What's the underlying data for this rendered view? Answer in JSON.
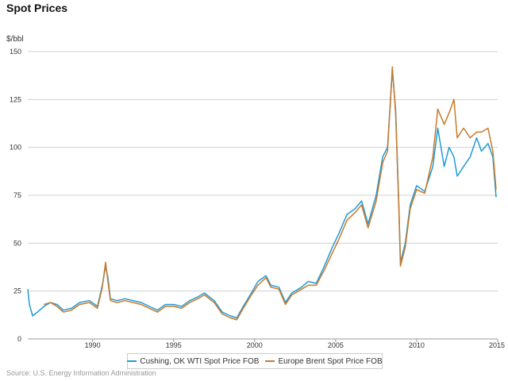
{
  "chart_data": {
    "type": "line",
    "title": "Spot Prices",
    "ylabel": "$/bbl",
    "source": "Source: U.S. Energy Information Administration",
    "ylim": [
      0,
      150
    ],
    "yticks": [
      0,
      25,
      50,
      75,
      100,
      125,
      150
    ],
    "xlim": [
      1986,
      2015
    ],
    "xticks": [
      1990,
      1995,
      2000,
      2005,
      2010,
      2015
    ],
    "grid": true,
    "legend_position": "bottom",
    "series": [
      {
        "name": "Cushing, OK WTI Spot Price FOB",
        "color": "#1f9bd7",
        "x": [
          1986.0,
          1986.1,
          1986.3,
          1986.6,
          1987.0,
          1987.4,
          1987.8,
          1988.2,
          1988.7,
          1989.2,
          1989.8,
          1990.3,
          1990.6,
          1990.8,
          1990.95,
          1991.1,
          1991.5,
          1992.0,
          1992.5,
          1993.0,
          1993.5,
          1994.0,
          1994.5,
          1995.0,
          1995.5,
          1996.0,
          1996.5,
          1996.9,
          1997.5,
          1998.0,
          1998.5,
          1998.9,
          1999.3,
          1999.8,
          2000.2,
          2000.7,
          2001.0,
          2001.5,
          2001.9,
          2002.3,
          2002.9,
          2003.3,
          2003.8,
          2004.3,
          2004.8,
          2005.2,
          2005.7,
          2006.2,
          2006.6,
          2007.0,
          2007.5,
          2007.9,
          2008.2,
          2008.5,
          2008.7,
          2008.9,
          2009.0,
          2009.3,
          2009.6,
          2010.0,
          2010.5,
          2011.0,
          2011.3,
          2011.7,
          2012.0,
          2012.3,
          2012.5,
          2012.9,
          2013.3,
          2013.7,
          2014.0,
          2014.4,
          2014.7,
          2014.9
        ],
        "values": [
          26,
          18,
          12,
          14,
          17,
          19,
          18,
          15,
          16,
          19,
          20,
          17,
          28,
          38,
          32,
          21,
          20,
          21,
          20,
          19,
          17,
          15,
          18,
          18,
          17,
          20,
          22,
          24,
          20,
          14,
          12,
          11,
          17,
          24,
          30,
          33,
          28,
          27,
          19,
          24,
          27,
          30,
          29,
          38,
          48,
          55,
          65,
          68,
          72,
          60,
          75,
          95,
          100,
          140,
          120,
          70,
          40,
          50,
          70,
          80,
          77,
          90,
          110,
          90,
          100,
          95,
          85,
          90,
          95,
          105,
          98,
          102,
          95,
          74
        ]
      },
      {
        "name": "Europe Brent Spot Price FOB",
        "color": "#c87a2c",
        "x": [
          1987.0,
          1987.4,
          1987.8,
          1988.2,
          1988.7,
          1989.2,
          1989.8,
          1990.3,
          1990.6,
          1990.8,
          1990.95,
          1991.1,
          1991.5,
          1992.0,
          1992.5,
          1993.0,
          1993.5,
          1994.0,
          1994.5,
          1995.0,
          1995.5,
          1996.0,
          1996.5,
          1996.9,
          1997.5,
          1998.0,
          1998.5,
          1998.9,
          1999.3,
          1999.8,
          2000.2,
          2000.7,
          2001.0,
          2001.5,
          2001.9,
          2002.3,
          2002.9,
          2003.3,
          2003.8,
          2004.3,
          2004.8,
          2005.2,
          2005.7,
          2006.2,
          2006.6,
          2007.0,
          2007.5,
          2007.9,
          2008.2,
          2008.5,
          2008.7,
          2008.9,
          2009.0,
          2009.3,
          2009.6,
          2010.0,
          2010.5,
          2011.0,
          2011.3,
          2011.7,
          2012.0,
          2012.3,
          2012.5,
          2012.9,
          2013.3,
          2013.7,
          2014.0,
          2014.4,
          2014.7,
          2014.9
        ],
        "values": [
          18,
          19,
          17,
          14,
          15,
          18,
          19,
          16,
          27,
          40,
          30,
          20,
          19,
          20,
          19,
          18,
          16,
          14,
          17,
          17,
          16,
          19,
          21,
          23,
          19,
          13,
          11,
          10,
          16,
          23,
          28,
          32,
          27,
          26,
          18,
          23,
          26,
          28,
          28,
          36,
          45,
          52,
          62,
          66,
          70,
          58,
          72,
          92,
          98,
          142,
          118,
          68,
          38,
          48,
          68,
          78,
          76,
          95,
          120,
          112,
          118,
          125,
          105,
          110,
          105,
          108,
          108,
          110,
          98,
          78
        ]
      }
    ]
  }
}
